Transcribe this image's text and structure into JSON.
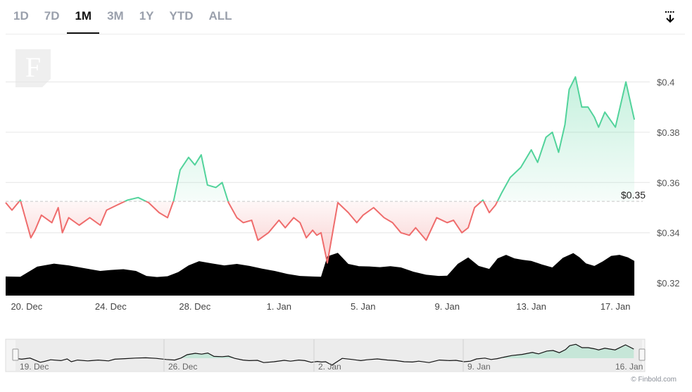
{
  "tabs": [
    {
      "label": "1D",
      "active": false
    },
    {
      "label": "7D",
      "active": false
    },
    {
      "label": "1M",
      "active": true
    },
    {
      "label": "3M",
      "active": false
    },
    {
      "label": "1Y",
      "active": false
    },
    {
      "label": "YTD",
      "active": false
    },
    {
      "label": "ALL",
      "active": false
    }
  ],
  "logo_letter": "F",
  "credit": "© Finbold.com",
  "colors": {
    "up": "#52d39b",
    "down": "#ef6c6c",
    "volume": "#000000",
    "grid": "#e6e6e6",
    "navigator_bg": "#e8e8e8"
  },
  "chart_data": {
    "type": "area",
    "baseline": 0.3525,
    "baseline_label": "$0.35",
    "ylim": [
      0.315,
      0.413
    ],
    "y_ticks": [
      0.32,
      0.34,
      0.36,
      0.38,
      0.4
    ],
    "y_tick_labels": [
      "$0.32",
      "$0.34",
      "$0.36",
      "$0.38",
      "$0.4"
    ],
    "xlim": [
      0,
      30.3
    ],
    "x_ticks": [
      1,
      5,
      9,
      13,
      17,
      21,
      25,
      29
    ],
    "x_tick_labels": [
      "20. Dec",
      "24. Dec",
      "28. Dec",
      "1. Jan",
      "5. Jan",
      "9. Jan",
      "13. Jan",
      "17. Jan"
    ],
    "price": {
      "x": [
        0,
        0.3,
        0.7,
        1.2,
        1.4,
        1.7,
        2.2,
        2.5,
        2.7,
        3.0,
        3.5,
        4.0,
        4.5,
        4.8,
        5.3,
        5.8,
        6.3,
        6.8,
        7.3,
        7.7,
        8.0,
        8.3,
        8.7,
        9.0,
        9.3,
        9.6,
        10.0,
        10.3,
        10.6,
        11.0,
        11.3,
        11.7,
        12.0,
        12.5,
        13.0,
        13.3,
        13.7,
        14.0,
        14.3,
        14.6,
        14.8,
        15.0,
        15.3,
        15.8,
        16.3,
        16.7,
        17.0,
        17.5,
        18.0,
        18.4,
        18.8,
        19.2,
        19.5,
        20.0,
        20.5,
        21.0,
        21.3,
        21.7,
        22.0,
        22.3,
        22.7,
        23.0,
        23.3,
        23.6,
        24.0,
        24.5,
        25.0,
        25.3,
        25.7,
        26.0,
        26.3,
        26.6,
        26.8,
        27.1,
        27.4,
        27.7,
        28.0,
        28.2,
        28.5,
        29.0,
        29.5,
        29.9
      ],
      "y": [
        0.352,
        0.349,
        0.353,
        0.338,
        0.341,
        0.347,
        0.344,
        0.35,
        0.34,
        0.346,
        0.343,
        0.346,
        0.343,
        0.349,
        0.351,
        0.353,
        0.354,
        0.352,
        0.348,
        0.346,
        0.353,
        0.365,
        0.37,
        0.367,
        0.371,
        0.359,
        0.358,
        0.36,
        0.352,
        0.346,
        0.344,
        0.345,
        0.337,
        0.34,
        0.345,
        0.342,
        0.346,
        0.344,
        0.338,
        0.341,
        0.339,
        0.34,
        0.328,
        0.352,
        0.348,
        0.344,
        0.347,
        0.35,
        0.346,
        0.344,
        0.34,
        0.339,
        0.342,
        0.337,
        0.346,
        0.344,
        0.345,
        0.34,
        0.342,
        0.35,
        0.353,
        0.348,
        0.351,
        0.356,
        0.362,
        0.366,
        0.373,
        0.368,
        0.378,
        0.38,
        0.372,
        0.383,
        0.397,
        0.402,
        0.39,
        0.39,
        0.386,
        0.382,
        0.388,
        0.382,
        0.4,
        0.385
      ]
    },
    "volume": {
      "x": [
        0,
        0.7,
        1.5,
        2.3,
        3.0,
        3.8,
        4.5,
        5.0,
        5.6,
        6.2,
        6.7,
        7.2,
        7.7,
        8.2,
        8.7,
        9.2,
        9.8,
        10.4,
        11.0,
        11.6,
        12.2,
        12.8,
        13.4,
        14.0,
        14.6,
        15.0,
        15.3,
        15.8,
        16.3,
        16.8,
        17.3,
        17.8,
        18.3,
        18.8,
        19.4,
        20.0,
        20.6,
        21.0,
        21.5,
        22.0,
        22.5,
        23.0,
        23.4,
        23.8,
        24.2,
        24.6,
        25.0,
        25.5,
        26.0,
        26.5,
        27.0,
        27.3,
        27.6,
        28.0,
        28.4,
        28.8,
        29.2,
        29.6,
        29.9
      ],
      "y": [
        0.3226,
        0.3225,
        0.3265,
        0.3277,
        0.327,
        0.3258,
        0.3248,
        0.3252,
        0.3255,
        0.3248,
        0.3228,
        0.3224,
        0.3227,
        0.3243,
        0.327,
        0.3287,
        0.3278,
        0.327,
        0.3276,
        0.3268,
        0.3257,
        0.3248,
        0.3236,
        0.3228,
        0.3226,
        0.3225,
        0.3306,
        0.332,
        0.3276,
        0.3267,
        0.3266,
        0.3263,
        0.3267,
        0.3262,
        0.3245,
        0.3233,
        0.3228,
        0.3229,
        0.3276,
        0.3302,
        0.3268,
        0.3256,
        0.3298,
        0.3312,
        0.3298,
        0.3292,
        0.3288,
        0.3274,
        0.3262,
        0.33,
        0.3319,
        0.3302,
        0.3278,
        0.3268,
        0.3286,
        0.3308,
        0.3312,
        0.3302,
        0.3288
      ]
    },
    "navigator": {
      "x_tick_labels": [
        "19. Dec",
        "26. Dec",
        "2. Jan",
        "9. Jan",
        "16. Jan"
      ]
    }
  }
}
